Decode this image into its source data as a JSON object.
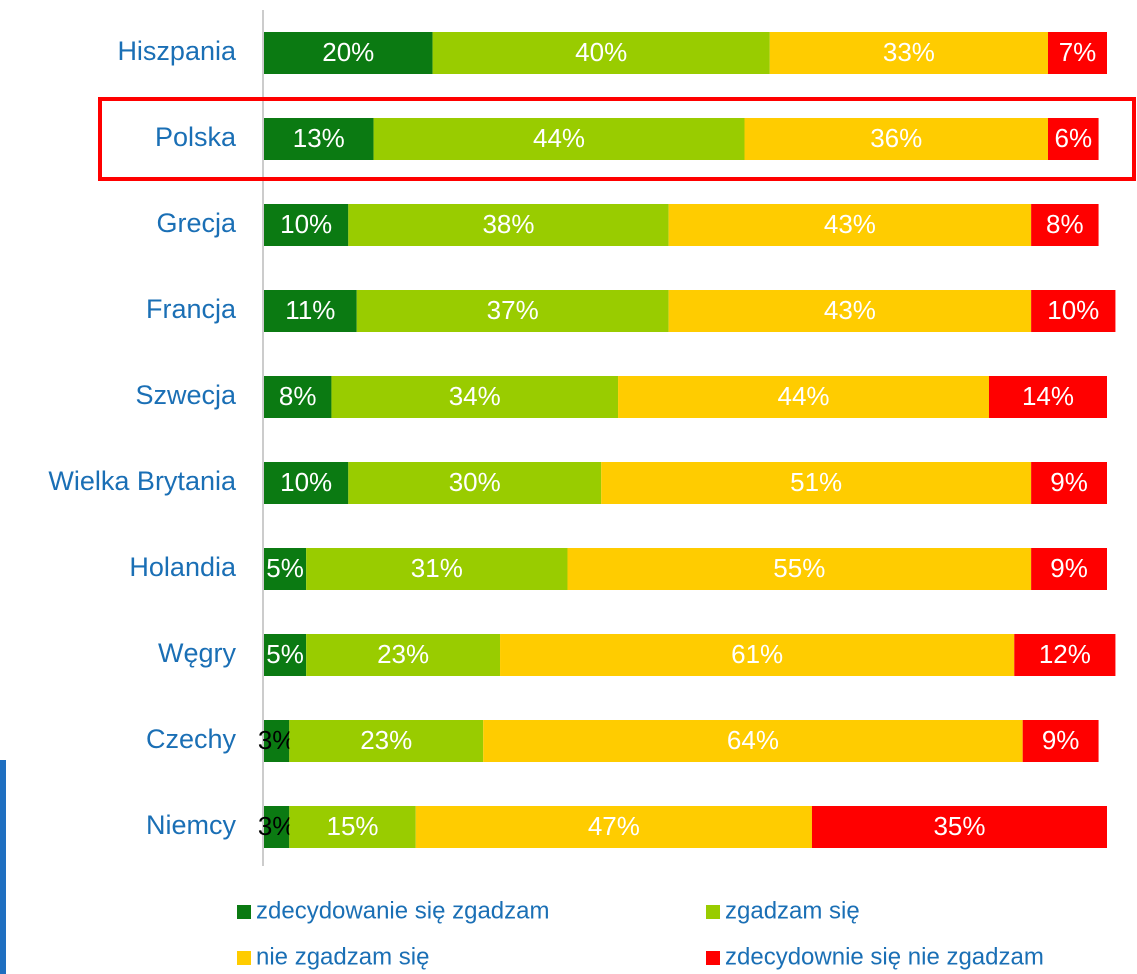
{
  "chart_data": {
    "type": "stacked-bar-horizontal",
    "categories": [
      "Hiszpania",
      "Polska",
      "Grecja",
      "Francja",
      "Szwecja",
      "Wielka Brytania",
      "Holandia",
      "Węgry",
      "Czechy",
      "Niemcy"
    ],
    "xlim": [
      0,
      100
    ],
    "legend": "bottom",
    "series": [
      {
        "name": "zdecydowanie się zgadzam",
        "color": "#0b7a12",
        "values": [
          20,
          13,
          10,
          11,
          8,
          10,
          5,
          5,
          3,
          3
        ],
        "value_labels": [
          "20%",
          "13%",
          "10%",
          "11%",
          "8%",
          "10%",
          "5%",
          "5%",
          "3%",
          "3%"
        ]
      },
      {
        "name": "zgadzam się",
        "color": "#99cc00",
        "values": [
          40,
          44,
          38,
          37,
          34,
          30,
          31,
          23,
          23,
          15
        ],
        "value_labels": [
          "40%",
          "44%",
          "38%",
          "37%",
          "34%",
          "30%",
          "31%",
          "23%",
          "23%",
          "15%"
        ]
      },
      {
        "name": "nie zgadzam się",
        "color": "#ffcc00",
        "values": [
          33,
          36,
          43,
          43,
          44,
          51,
          55,
          61,
          64,
          47
        ],
        "value_labels": [
          "33%",
          "36%",
          "43%",
          "43%",
          "44%",
          "51%",
          "55%",
          "61%",
          "64%",
          "47%"
        ]
      },
      {
        "name": "zdecydownie się nie zgadzam",
        "color": "#ff0000",
        "values": [
          7,
          6,
          8,
          10,
          14,
          9,
          9,
          12,
          9,
          35
        ],
        "value_labels": [
          "7%",
          "6%",
          "8%",
          "10%",
          "14%",
          "9%",
          "9%",
          "12%",
          "9%",
          "35%"
        ]
      }
    ]
  }
}
